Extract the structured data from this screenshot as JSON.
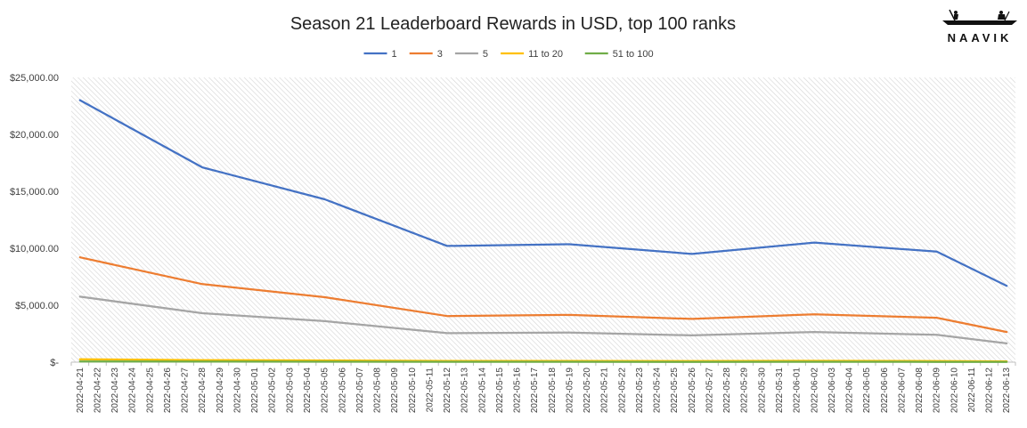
{
  "brand": {
    "name": "NAAVIK"
  },
  "chart_data": {
    "type": "line",
    "title": "Season 21 Leaderboard Rewards in USD, top 100 ranks",
    "xlabel": "",
    "ylabel": "",
    "ylim": [
      0,
      25000
    ],
    "yticks": [
      {
        "value": 0,
        "label": "$-"
      },
      {
        "value": 5000,
        "label": "$5,000.00"
      },
      {
        "value": 10000,
        "label": "$10,000.00"
      },
      {
        "value": 15000,
        "label": "$15,000.00"
      },
      {
        "value": 20000,
        "label": "$20,000.00"
      },
      {
        "value": 25000,
        "label": "$25,000.00"
      }
    ],
    "grid": true,
    "legend": "top-center",
    "categories": [
      "2022-04-21",
      "2022-04-22",
      "2022-04-23",
      "2022-04-24",
      "2022-04-25",
      "2022-04-26",
      "2022-04-27",
      "2022-04-28",
      "2022-04-29",
      "2022-04-30",
      "2022-05-01",
      "2022-05-02",
      "2022-05-03",
      "2022-05-04",
      "2022-05-05",
      "2022-05-06",
      "2022-05-07",
      "2022-05-08",
      "2022-05-09",
      "2022-05-10",
      "2022-05-11",
      "2022-05-12",
      "2022-05-13",
      "2022-05-14",
      "2022-05-15",
      "2022-05-16",
      "2022-05-17",
      "2022-05-18",
      "2022-05-19",
      "2022-05-20",
      "2022-05-21",
      "2022-05-22",
      "2022-05-23",
      "2022-05-24",
      "2022-05-25",
      "2022-05-26",
      "2022-05-27",
      "2022-05-28",
      "2022-05-29",
      "2022-05-30",
      "2022-05-31",
      "2022-06-01",
      "2022-06-02",
      "2022-06-03",
      "2022-06-04",
      "2022-06-05",
      "2022-06-06",
      "2022-06-07",
      "2022-06-08",
      "2022-06-09",
      "2022-06-10",
      "2022-06-11",
      "2022-06-12",
      "2022-06-13"
    ],
    "series": [
      {
        "name": "1",
        "color": "#4472C4",
        "points": [
          {
            "x": "2022-04-21",
            "y": 23000
          },
          {
            "x": "2022-04-28",
            "y": 17100
          },
          {
            "x": "2022-05-05",
            "y": 14300
          },
          {
            "x": "2022-05-12",
            "y": 10200
          },
          {
            "x": "2022-05-19",
            "y": 10350
          },
          {
            "x": "2022-05-26",
            "y": 9500
          },
          {
            "x": "2022-06-02",
            "y": 10500
          },
          {
            "x": "2022-06-09",
            "y": 9700
          },
          {
            "x": "2022-06-13",
            "y": 6700
          }
        ]
      },
      {
        "name": "3",
        "color": "#ED7D31",
        "points": [
          {
            "x": "2022-04-21",
            "y": 9200
          },
          {
            "x": "2022-04-28",
            "y": 6850
          },
          {
            "x": "2022-05-05",
            "y": 5700
          },
          {
            "x": "2022-05-12",
            "y": 4050
          },
          {
            "x": "2022-05-19",
            "y": 4150
          },
          {
            "x": "2022-05-26",
            "y": 3800
          },
          {
            "x": "2022-06-02",
            "y": 4200
          },
          {
            "x": "2022-06-09",
            "y": 3900
          },
          {
            "x": "2022-06-13",
            "y": 2650
          }
        ]
      },
      {
        "name": "5",
        "color": "#A5A5A5",
        "points": [
          {
            "x": "2022-04-21",
            "y": 5750
          },
          {
            "x": "2022-04-28",
            "y": 4300
          },
          {
            "x": "2022-05-05",
            "y": 3600
          },
          {
            "x": "2022-05-12",
            "y": 2550
          },
          {
            "x": "2022-05-19",
            "y": 2600
          },
          {
            "x": "2022-05-26",
            "y": 2350
          },
          {
            "x": "2022-06-02",
            "y": 2650
          },
          {
            "x": "2022-06-09",
            "y": 2400
          },
          {
            "x": "2022-06-13",
            "y": 1650
          }
        ]
      },
      {
        "name": "11 to 20",
        "color": "#FFC000",
        "points": [
          {
            "x": "2022-04-21",
            "y": 250
          },
          {
            "x": "2022-04-28",
            "y": 180
          },
          {
            "x": "2022-05-05",
            "y": 150
          },
          {
            "x": "2022-05-12",
            "y": 110
          },
          {
            "x": "2022-05-19",
            "y": 110
          },
          {
            "x": "2022-05-26",
            "y": 100
          },
          {
            "x": "2022-06-02",
            "y": 120
          },
          {
            "x": "2022-06-09",
            "y": 100
          },
          {
            "x": "2022-06-13",
            "y": 70
          }
        ]
      },
      {
        "name": "51 to 100",
        "color": "#70AD47",
        "points": [
          {
            "x": "2022-04-21",
            "y": 60
          },
          {
            "x": "2022-04-28",
            "y": 45
          },
          {
            "x": "2022-05-05",
            "y": 40
          },
          {
            "x": "2022-05-12",
            "y": 30
          },
          {
            "x": "2022-05-19",
            "y": 30
          },
          {
            "x": "2022-05-26",
            "y": 25
          },
          {
            "x": "2022-06-02",
            "y": 30
          },
          {
            "x": "2022-06-09",
            "y": 25
          },
          {
            "x": "2022-06-13",
            "y": 20
          }
        ]
      }
    ]
  }
}
